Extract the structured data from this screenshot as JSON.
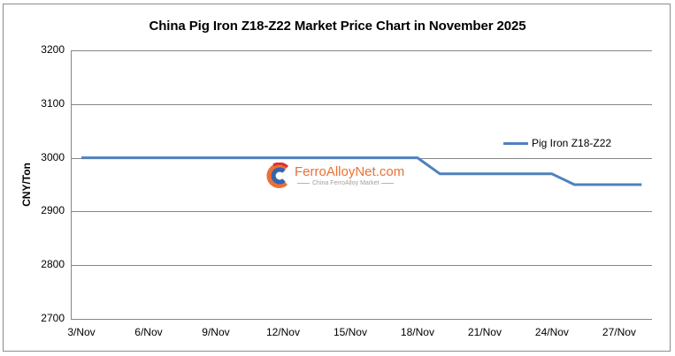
{
  "chart_data": {
    "type": "line",
    "title": "China Pig Iron Z18-Z22 Market Price Chart in November 2025",
    "xlabel": "",
    "ylabel": "CNY/Ton",
    "ylim": [
      2700,
      3200
    ],
    "yticks": [
      "3200",
      "3100",
      "3000",
      "2900",
      "2800",
      "2700"
    ],
    "xtick_labels": [
      "3/Nov",
      "6/Nov",
      "9/Nov",
      "12/Nov",
      "15/Nov",
      "18/Nov",
      "21/Nov",
      "24/Nov",
      "27/Nov"
    ],
    "grid": "horizontal",
    "legend_position": "right",
    "x": [
      "3/Nov",
      "4/Nov",
      "5/Nov",
      "6/Nov",
      "7/Nov",
      "8/Nov",
      "9/Nov",
      "10/Nov",
      "11/Nov",
      "12/Nov",
      "13/Nov",
      "14/Nov",
      "15/Nov",
      "16/Nov",
      "17/Nov",
      "18/Nov",
      "19/Nov",
      "20/Nov",
      "21/Nov",
      "22/Nov",
      "23/Nov",
      "24/Nov",
      "25/Nov",
      "26/Nov",
      "27/Nov",
      "28/Nov"
    ],
    "series": [
      {
        "name": "Pig Iron Z18-Z22",
        "color": "#4f81bd",
        "values": [
          3000,
          3000,
          3000,
          3000,
          3000,
          3000,
          3000,
          3000,
          3000,
          3000,
          3000,
          3000,
          3000,
          3000,
          3000,
          3000,
          2970,
          2970,
          2970,
          2970,
          2970,
          2970,
          2950,
          2950,
          2950,
          2950
        ]
      }
    ]
  },
  "watermark": {
    "brand": "FerroAlloyNet.com",
    "tagline": "China FerroAlloy Market"
  }
}
